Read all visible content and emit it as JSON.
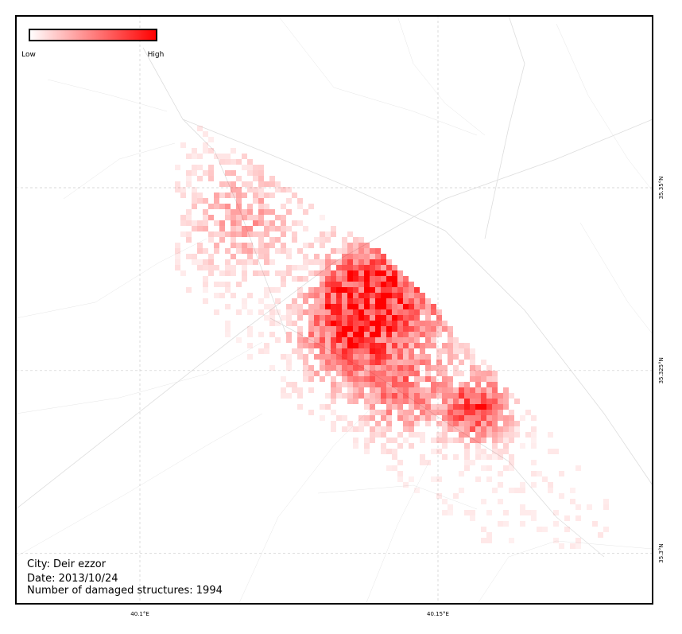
{
  "map": {
    "legend": {
      "low": "Low",
      "high": "High"
    },
    "info": {
      "city": "City: Deir ezzor",
      "date": "Date: 2013/10/24",
      "count": "Number of damaged structures: 1994"
    },
    "xlim": [
      40.0792,
      40.186
    ],
    "ylim": [
      35.2931,
      35.3735
    ],
    "xticks": [
      {
        "value": 40.1,
        "label": "40.1°E"
      },
      {
        "value": 40.15,
        "label": "40.15°E"
      }
    ],
    "yticks": [
      {
        "value": 35.35,
        "label": "35.35°N"
      },
      {
        "value": 35.325,
        "label": "35.325°N"
      },
      {
        "value": 35.3,
        "label": "35.3°N"
      }
    ],
    "grid": true,
    "color": "#ff0000"
  }
}
